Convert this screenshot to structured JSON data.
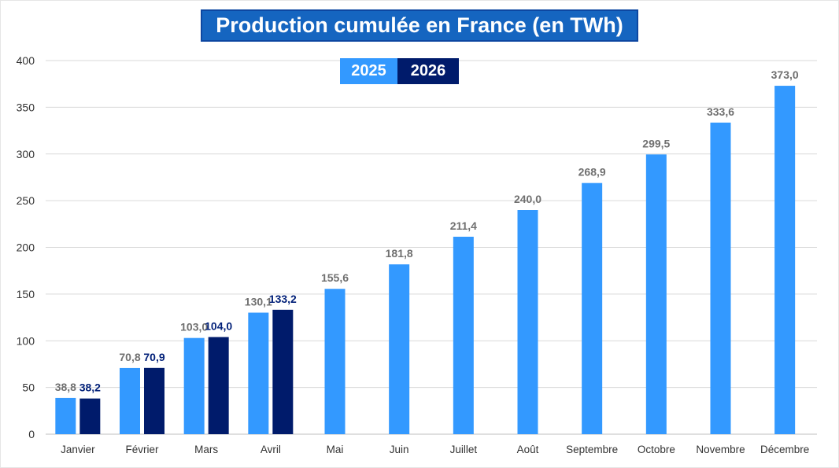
{
  "title": "Production cumulée en France (en TWh)",
  "colors": {
    "series_2025": "#3399ff",
    "series_2026": "#001b6b",
    "label_2025": "#707070",
    "label_2026": "#001f78",
    "grid": "#d9d9d9",
    "title_bg": "#1565c0"
  },
  "legend": [
    {
      "label": "2025",
      "color": "#3399ff"
    },
    {
      "label": "2026",
      "color": "#001b6b"
    }
  ],
  "chart_data": {
    "type": "bar",
    "title": "Production cumulée en France (en TWh)",
    "xlabel": "",
    "ylabel": "",
    "ylim": [
      0,
      400
    ],
    "yticks": [
      0,
      50,
      100,
      150,
      200,
      250,
      300,
      350,
      400
    ],
    "grid": true,
    "legend_position": "top-center",
    "categories": [
      "Janvier",
      "Février",
      "Mars",
      "Avril",
      "Mai",
      "Juin",
      "Juillet",
      "Août",
      "Septembre",
      "Octobre",
      "Novembre",
      "Décembre"
    ],
    "series": [
      {
        "name": "2025",
        "values": [
          38.8,
          70.8,
          103.0,
          130.1,
          155.6,
          181.8,
          211.4,
          240.0,
          268.9,
          299.5,
          333.6,
          373.0
        ],
        "labels": [
          "38,8",
          "70,8",
          "103,0",
          "130,1",
          "155,6",
          "181,8",
          "211,4",
          "240,0",
          "268,9",
          "299,5",
          "333,6",
          "373,0"
        ]
      },
      {
        "name": "2026",
        "values": [
          38.2,
          70.9,
          104.0,
          133.2,
          null,
          null,
          null,
          null,
          null,
          null,
          null,
          null
        ],
        "labels": [
          "38,2",
          "70,9",
          "104,0",
          "133,2",
          null,
          null,
          null,
          null,
          null,
          null,
          null,
          null
        ]
      }
    ]
  }
}
